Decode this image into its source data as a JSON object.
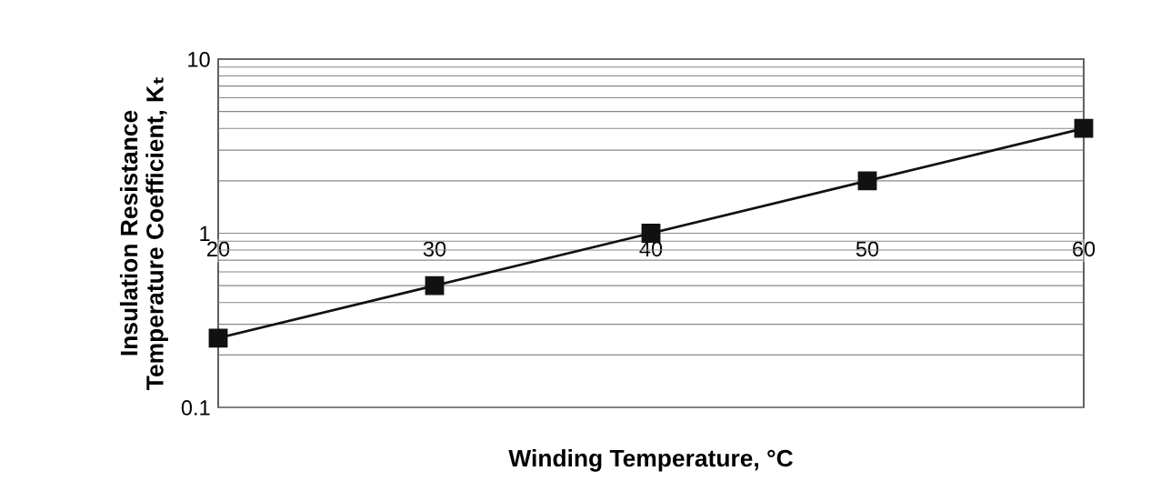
{
  "chart_data": {
    "type": "line",
    "xlabel": "Winding Temperature, °C",
    "ylabel": "Insulation Resistance\nTemperature Coefficient, Kₜ",
    "x": [
      20,
      30,
      40,
      50,
      60
    ],
    "series": [
      {
        "color": "#111111",
        "values": [
          0.25,
          0.5,
          1.0,
          2.0,
          4.0
        ]
      }
    ],
    "log": "y",
    "xlim": [
      20,
      60
    ],
    "xticks": [
      20,
      30,
      40,
      50,
      60
    ],
    "ylim": [
      0.1,
      10
    ],
    "yticks": [
      0.1,
      1,
      10
    ],
    "grid": "y",
    "marker": "square",
    "line_style": "solid"
  }
}
